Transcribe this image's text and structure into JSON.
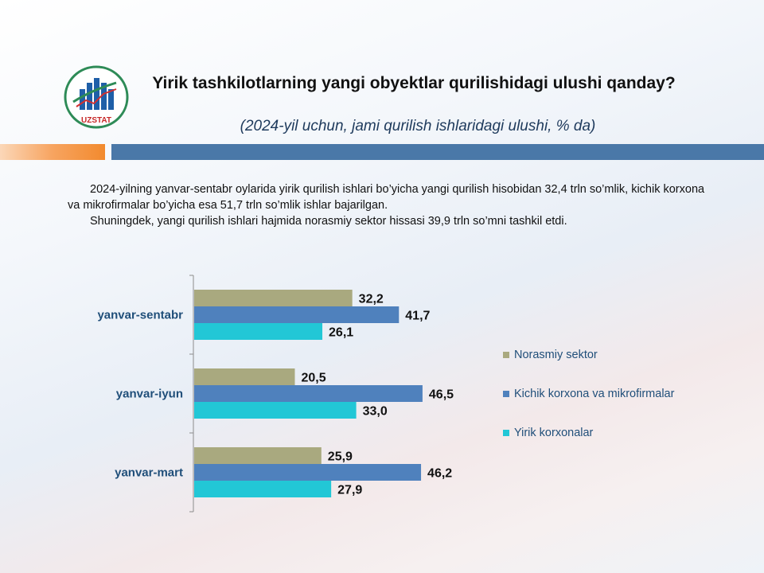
{
  "logo": {
    "text": "UZSTAT",
    "icon": "uzstat-logo-icon"
  },
  "header": {
    "title": "Yirik tashkilotlarning yangi obyektlar qurilishidagi ulushi qanday?",
    "subtitle": "(2024-yil  uchun, jami qurilish ishlaridagi ulushi, % da)"
  },
  "intro": {
    "p1": "2024-yilning yanvar-sentabr oylarida yirik qurilish ishlari bo’yicha yangi qurilish hisobidan 32,4 trln so’mlik, kichik korxona va mikrofirmalar bo’yicha esa 51,7 trln so’mlik ishlar bajarilgan.",
    "p2": "Shuningdek, yangi qurilish ishlari hajmida norasmiy sektor hissasi 39,9 trln so’mni tashkil etdi."
  },
  "chart_data": {
    "type": "bar",
    "orientation": "horizontal",
    "categories": [
      "yanvar-sentabr",
      "yanvar-iyun",
      "yanvar-mart"
    ],
    "series": [
      {
        "name": "Norasmiy sektor",
        "values": [
          32.2,
          20.5,
          25.9
        ],
        "labels": [
          "32,2",
          "20,5",
          "25,9"
        ],
        "color": "#a9a97f"
      },
      {
        "name": "Kichik korxona va mikrofirmalar",
        "values": [
          41.7,
          46.5,
          46.2
        ],
        "labels": [
          "41,7",
          "46,5",
          "46,2"
        ],
        "color": "#4f81bd"
      },
      {
        "name": "Yirik korxonalar",
        "values": [
          26.1,
          33.0,
          27.9
        ],
        "labels": [
          "26,1",
          "33,0",
          "27,9"
        ],
        "color": "#22c7d6"
      }
    ],
    "xlim": [
      0,
      50
    ],
    "grid": false,
    "legend": "right"
  }
}
